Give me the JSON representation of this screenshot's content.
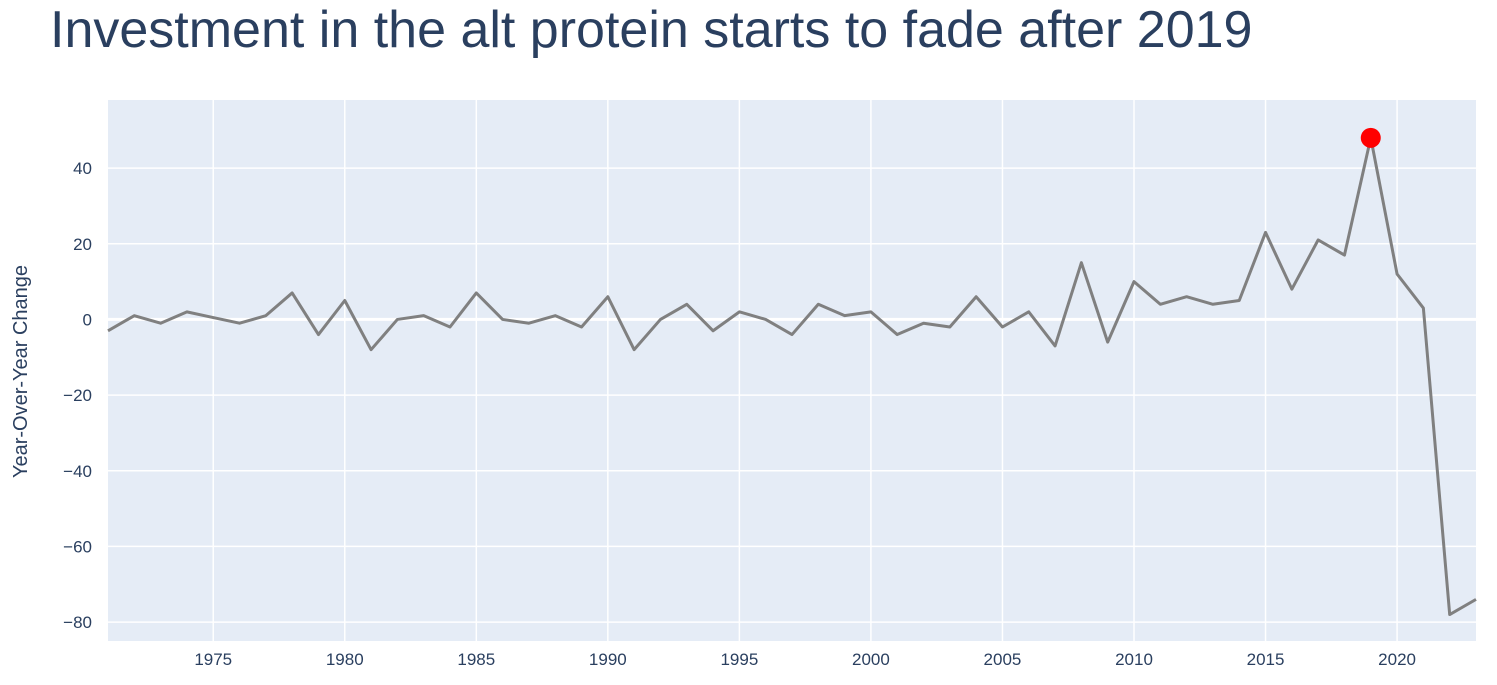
{
  "chart_data": {
    "type": "line",
    "title": "Investment in the alt protein starts to fade after 2019",
    "xlabel": "",
    "ylabel": "Year-Over-Year Change",
    "xlim": [
      1971,
      2023
    ],
    "ylim": [
      -85,
      58
    ],
    "x_ticks": [
      1975,
      1980,
      1985,
      1990,
      1995,
      2000,
      2005,
      2010,
      2015,
      2020
    ],
    "y_ticks": [
      -80,
      -60,
      -40,
      -20,
      0,
      20,
      40
    ],
    "y_tick_labels": [
      "−80",
      "−60",
      "−40",
      "−20",
      "0",
      "20",
      "40"
    ],
    "grid": true,
    "series": [
      {
        "color": "#808080",
        "x": [
          1971,
          1972,
          1973,
          1974,
          1975,
          1976,
          1977,
          1978,
          1979,
          1980,
          1981,
          1982,
          1983,
          1984,
          1985,
          1986,
          1987,
          1988,
          1989,
          1990,
          1991,
          1992,
          1993,
          1994,
          1995,
          1996,
          1997,
          1998,
          1999,
          2000,
          2001,
          2002,
          2003,
          2004,
          2005,
          2006,
          2007,
          2008,
          2009,
          2010,
          2011,
          2012,
          2013,
          2014,
          2015,
          2016,
          2017,
          2018,
          2019,
          2020,
          2021,
          2022,
          2023
        ],
        "values": [
          -3,
          1,
          -1,
          2,
          0.5,
          -1,
          1,
          7,
          -4,
          5,
          -8,
          0,
          1,
          -2,
          7,
          0,
          -1,
          1,
          -2,
          6,
          -8,
          0,
          4,
          -3,
          2,
          0,
          -4,
          4,
          1,
          2,
          -4,
          -1,
          -2,
          6,
          -2,
          2,
          -7,
          15,
          -6,
          10,
          4,
          6,
          4,
          5,
          23,
          8,
          21,
          17,
          48,
          12,
          3,
          -78,
          -74
        ]
      }
    ],
    "highlight": {
      "x": 2019,
      "y": 48,
      "color": "#ff0000"
    },
    "colors": {
      "plot_background": "#e5ecf6",
      "grid": "#ffffff",
      "text": "#2a3f5f"
    }
  }
}
